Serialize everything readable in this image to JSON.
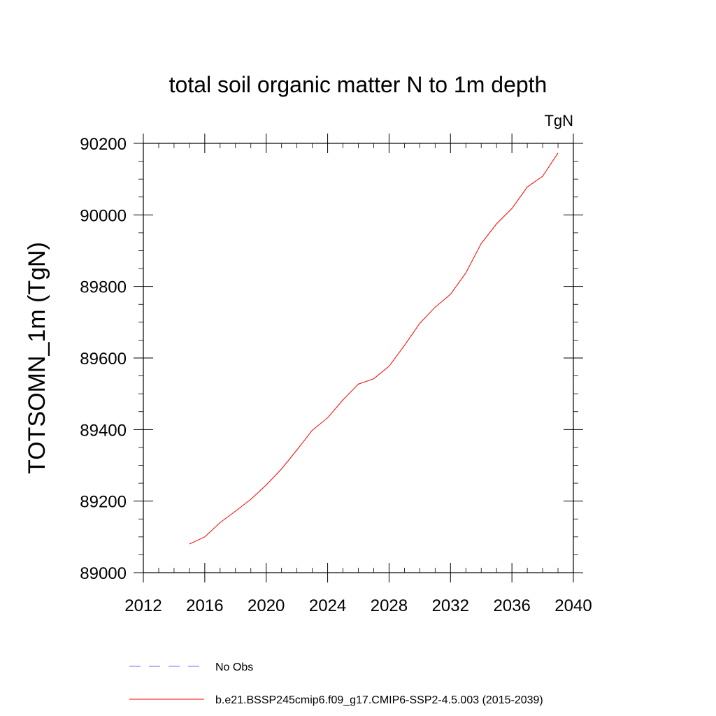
{
  "chart_data": {
    "type": "line",
    "title": "total soil organic matter N to 1m depth",
    "units_label": "TgN",
    "xlabel": "",
    "ylabel": "TOTSOMN_1m  (TgN)",
    "xlim": [
      2012,
      2040
    ],
    "ylim": [
      89000,
      90200
    ],
    "x_ticks": [
      2012,
      2016,
      2020,
      2024,
      2028,
      2032,
      2036,
      2040
    ],
    "y_ticks": [
      89000,
      89200,
      89400,
      89600,
      89800,
      90000,
      90200
    ],
    "x_minor_step": 1,
    "y_minor_step": 50,
    "grid": false,
    "legend_position": "bottom",
    "series": [
      {
        "name": "b.e21.BSSP245cmip6.f09_g17.CMIP6-SSP2-4.5.003 (2015-2039)",
        "color": "#ff0000",
        "style": "solid",
        "x": [
          2015,
          2016,
          2017,
          2018,
          2019,
          2020,
          2021,
          2022,
          2023,
          2024,
          2025,
          2026,
          2027,
          2028,
          2029,
          2030,
          2031,
          2032,
          2033,
          2034,
          2035,
          2036,
          2037,
          2038,
          2039
        ],
        "values": [
          89080,
          89100,
          89140,
          89172,
          89205,
          89245,
          89290,
          89343,
          89398,
          89433,
          89483,
          89527,
          89542,
          89577,
          89635,
          89697,
          89742,
          89778,
          89838,
          89920,
          89975,
          90018,
          90078,
          90108,
          90173
        ]
      }
    ],
    "legend": [
      {
        "label": "No Obs",
        "color": "#7b68ee",
        "style": "dashed"
      },
      {
        "label": "b.e21.BSSP245cmip6.f09_g17.CMIP6-SSP2-4.5.003 (2015-2039)",
        "color": "#ff0000",
        "style": "solid"
      }
    ]
  }
}
